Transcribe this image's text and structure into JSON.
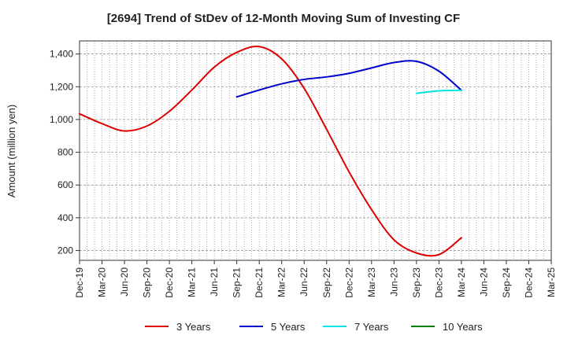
{
  "chart_data": {
    "type": "line",
    "title": "[2694]  Trend of StDev of 12-Month Moving Sum of Investing CF",
    "ylabel": "Amount (million yen)",
    "xlabel": "",
    "ylim": [
      140,
      1480
    ],
    "yticks": [
      200,
      400,
      600,
      800,
      1000,
      1200,
      1400
    ],
    "ytick_labels": [
      "200",
      "400",
      "600",
      "800",
      "1,000",
      "1,200",
      "1,400"
    ],
    "categories": [
      "Dec-19",
      "Mar-20",
      "Jun-20",
      "Sep-20",
      "Dec-20",
      "Mar-21",
      "Jun-21",
      "Sep-21",
      "Dec-21",
      "Mar-22",
      "Jun-22",
      "Sep-22",
      "Dec-22",
      "Mar-23",
      "Jun-23",
      "Sep-23",
      "Dec-23",
      "Mar-24",
      "Jun-24",
      "Sep-24",
      "Dec-24",
      "Mar-25"
    ],
    "grid": true,
    "legend_position": "bottom",
    "series": [
      {
        "name": "3 Years",
        "color": "#dd0000",
        "points": [
          [
            "Dec-19",
            1035
          ],
          [
            "Mar-20",
            975
          ],
          [
            "Jun-20",
            930
          ],
          [
            "Sep-20",
            960
          ],
          [
            "Dec-20",
            1050
          ],
          [
            "Mar-21",
            1180
          ],
          [
            "Jun-21",
            1320
          ],
          [
            "Sep-21",
            1410
          ],
          [
            "Dec-21",
            1445
          ],
          [
            "Mar-22",
            1370
          ],
          [
            "Jun-22",
            1190
          ],
          [
            "Sep-22",
            940
          ],
          [
            "Dec-22",
            680
          ],
          [
            "Mar-23",
            450
          ],
          [
            "Jun-23",
            265
          ],
          [
            "Sep-23",
            185
          ],
          [
            "Dec-23",
            175
          ],
          [
            "Mar-24",
            278
          ]
        ]
      },
      {
        "name": "5 Years",
        "color": "#0000cc",
        "points": [
          [
            "Sep-21",
            1138
          ],
          [
            "Dec-21",
            1180
          ],
          [
            "Mar-22",
            1218
          ],
          [
            "Jun-22",
            1245
          ],
          [
            "Sep-22",
            1260
          ],
          [
            "Dec-22",
            1282
          ],
          [
            "Mar-23",
            1315
          ],
          [
            "Jun-23",
            1348
          ],
          [
            "Sep-23",
            1355
          ],
          [
            "Dec-23",
            1295
          ],
          [
            "Mar-24",
            1178
          ]
        ]
      },
      {
        "name": "7 Years",
        "color": "#00e5e5",
        "points": [
          [
            "Sep-23",
            1160
          ],
          [
            "Dec-23",
            1175
          ],
          [
            "Mar-24",
            1178
          ]
        ]
      },
      {
        "name": "10 Years",
        "color": "#008000",
        "points": []
      }
    ]
  }
}
